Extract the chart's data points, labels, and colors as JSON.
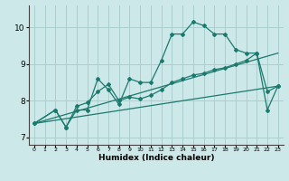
{
  "xlabel": "Humidex (Indice chaleur)",
  "background_color": "#cde8e8",
  "grid_color": "#aacfcf",
  "line_color": "#1a7a6e",
  "xlim": [
    -0.5,
    23.5
  ],
  "ylim": [
    6.8,
    10.6
  ],
  "yticks": [
    7,
    8,
    9,
    10
  ],
  "xticks": [
    0,
    1,
    2,
    3,
    4,
    5,
    6,
    7,
    8,
    9,
    10,
    11,
    12,
    13,
    14,
    15,
    16,
    17,
    18,
    19,
    20,
    21,
    22,
    23
  ],
  "series1_x": [
    0,
    2,
    3,
    4,
    5,
    6,
    7,
    8,
    9,
    10,
    11,
    12,
    13,
    14,
    15,
    16,
    17,
    18,
    19,
    20,
    21,
    22,
    23
  ],
  "series1_y": [
    7.38,
    7.75,
    7.28,
    7.75,
    7.75,
    8.6,
    8.3,
    7.9,
    8.6,
    8.5,
    8.5,
    9.1,
    9.82,
    9.82,
    10.15,
    10.05,
    9.82,
    9.82,
    9.4,
    9.3,
    9.3,
    7.75,
    8.4
  ],
  "series2_x": [
    0,
    2,
    3,
    4,
    5,
    6,
    7,
    8,
    9,
    10,
    11,
    12,
    13,
    14,
    15,
    16,
    17,
    18,
    19,
    20,
    21,
    22,
    23
  ],
  "series2_y": [
    7.38,
    7.75,
    7.28,
    7.85,
    7.95,
    8.25,
    8.45,
    8.0,
    8.1,
    8.05,
    8.15,
    8.3,
    8.5,
    8.6,
    8.7,
    8.75,
    8.85,
    8.9,
    9.0,
    9.1,
    9.3,
    8.25,
    8.4
  ],
  "series3_x": [
    0,
    23
  ],
  "series3_y": [
    7.38,
    8.4
  ],
  "series4_x": [
    0,
    23
  ],
  "series4_y": [
    7.38,
    9.3
  ]
}
